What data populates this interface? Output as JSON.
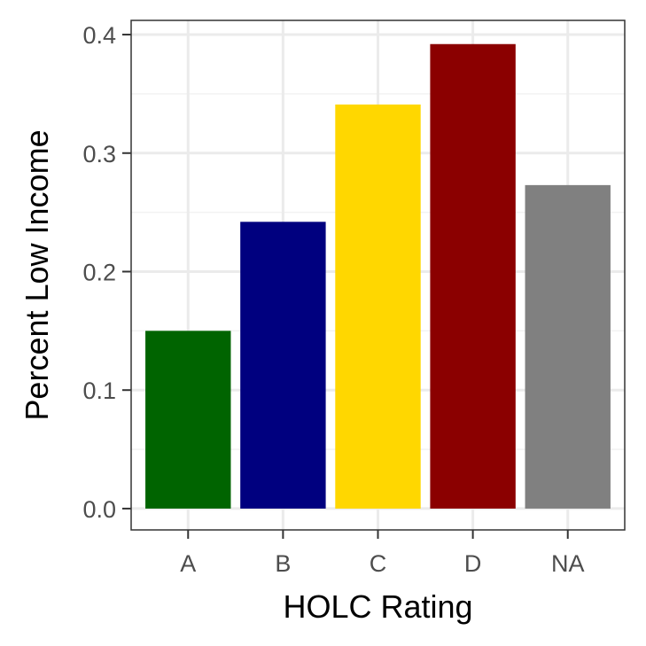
{
  "chart_data": {
    "type": "bar",
    "categories": [
      "A",
      "B",
      "C",
      "D",
      "NA"
    ],
    "values": [
      0.15,
      0.242,
      0.341,
      0.392,
      0.273
    ],
    "colors": [
      "#006400",
      "#00007f",
      "#ffd700",
      "#8b0000",
      "#808080"
    ],
    "xlabel": "HOLC Rating",
    "ylabel": "Percent Low Income",
    "ylim": [
      -0.018,
      0.412
    ],
    "yticks": [
      0.0,
      0.1,
      0.2,
      0.3,
      0.4
    ],
    "ytick_labels": [
      "0.0",
      "0.1",
      "0.2",
      "0.3",
      "0.4"
    ],
    "grid": true,
    "legend": "none"
  }
}
